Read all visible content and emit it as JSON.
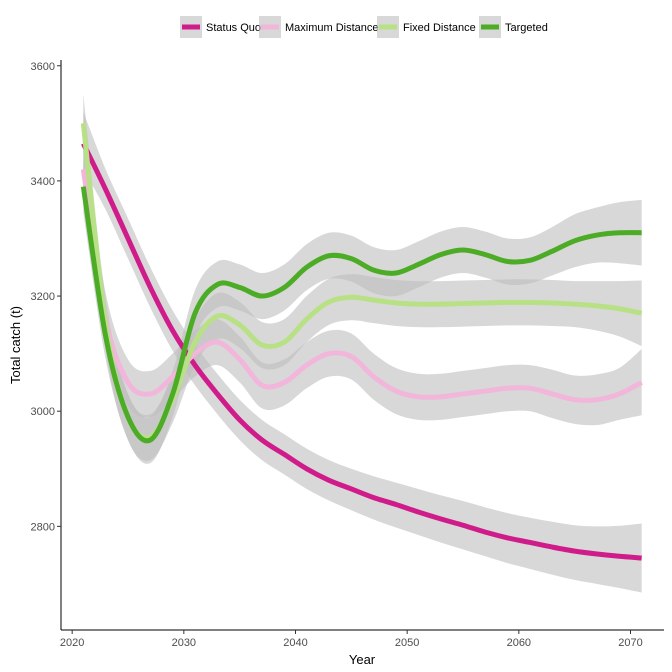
{
  "chart_data": {
    "type": "line",
    "title": "",
    "xlabel": "Year",
    "ylabel": "Total catch (t)",
    "xlim": [
      2019,
      2073
    ],
    "ylim": [
      2620,
      3610
    ],
    "x_ticks": [
      2020,
      2030,
      2040,
      2050,
      2060,
      2070
    ],
    "y_ticks": [
      2800,
      3000,
      3200,
      3400,
      3600
    ],
    "grid": false,
    "legend_position": "top",
    "band_color": "#bebebe",
    "series": [
      {
        "name": "Status Quo",
        "color": "#d01c8b",
        "x": [
          2021,
          2023,
          2025,
          2027,
          2029,
          2031,
          2033,
          2035,
          2037,
          2039,
          2041,
          2043,
          2045,
          2047,
          2049,
          2051,
          2053,
          2055,
          2057,
          2059,
          2061,
          2063,
          2065,
          2067,
          2069,
          2071
        ],
        "y": [
          3465,
          3385,
          3300,
          3215,
          3140,
          3080,
          3030,
          2985,
          2950,
          2925,
          2900,
          2880,
          2865,
          2850,
          2838,
          2825,
          2813,
          2802,
          2790,
          2780,
          2772,
          2764,
          2757,
          2752,
          2748,
          2745
        ],
        "ci_lower": [
          3420,
          3350,
          3265,
          3180,
          3105,
          3045,
          2995,
          2950,
          2915,
          2890,
          2865,
          2845,
          2828,
          2812,
          2798,
          2785,
          2772,
          2760,
          2748,
          2736,
          2726,
          2716,
          2707,
          2700,
          2693,
          2685
        ],
        "ci_upper": [
          3520,
          3420,
          3335,
          3250,
          3175,
          3115,
          3065,
          3020,
          2985,
          2960,
          2935,
          2915,
          2900,
          2887,
          2876,
          2865,
          2854,
          2844,
          2833,
          2823,
          2815,
          2808,
          2802,
          2800,
          2801,
          2805
        ]
      },
      {
        "name": "Maximum Distance",
        "color": "#f1b6da",
        "x": [
          2021,
          2023,
          2025,
          2027,
          2029,
          2031,
          2033,
          2035,
          2037,
          2039,
          2041,
          2043,
          2045,
          2047,
          2049,
          2051,
          2053,
          2055,
          2057,
          2059,
          2061,
          2063,
          2065,
          2067,
          2069,
          2071
        ],
        "y": [
          3420,
          3160,
          3050,
          3030,
          3060,
          3100,
          3120,
          3090,
          3045,
          3050,
          3080,
          3100,
          3095,
          3060,
          3035,
          3025,
          3025,
          3030,
          3035,
          3040,
          3040,
          3030,
          3020,
          3020,
          3030,
          3050
        ],
        "ci_lower": [
          3370,
          3115,
          3010,
          2990,
          3020,
          3060,
          3080,
          3050,
          3005,
          3010,
          3040,
          3060,
          3055,
          3020,
          2995,
          2985,
          2985,
          2990,
          2995,
          3000,
          3000,
          2988,
          2978,
          2976,
          2985,
          2993
        ],
        "ci_upper": [
          3470,
          3205,
          3090,
          3070,
          3100,
          3140,
          3160,
          3130,
          3085,
          3090,
          3120,
          3140,
          3135,
          3100,
          3075,
          3065,
          3065,
          3070,
          3075,
          3080,
          3080,
          3072,
          3062,
          3064,
          3075,
          3108
        ]
      },
      {
        "name": "Fixed Distance",
        "color": "#b8e186",
        "x": [
          2021,
          2023,
          2025,
          2027,
          2029,
          2031,
          2033,
          2035,
          2037,
          2039,
          2041,
          2043,
          2045,
          2047,
          2049,
          2051,
          2053,
          2055,
          2057,
          2059,
          2061,
          2063,
          2065,
          2067,
          2069,
          2071
        ],
        "y": [
          3500,
          3150,
          2990,
          2955,
          3020,
          3120,
          3165,
          3150,
          3115,
          3120,
          3160,
          3190,
          3198,
          3193,
          3188,
          3186,
          3186,
          3187,
          3188,
          3189,
          3189,
          3188,
          3186,
          3183,
          3178,
          3170
        ],
        "ci_lower": [
          3450,
          3105,
          2950,
          2915,
          2980,
          3080,
          3125,
          3110,
          3075,
          3080,
          3120,
          3150,
          3158,
          3153,
          3148,
          3146,
          3146,
          3147,
          3148,
          3149,
          3149,
          3148,
          3146,
          3140,
          3130,
          3113
        ],
        "ci_upper": [
          3550,
          3195,
          3030,
          2995,
          3060,
          3160,
          3205,
          3190,
          3155,
          3160,
          3200,
          3230,
          3238,
          3233,
          3228,
          3226,
          3226,
          3227,
          3228,
          3229,
          3229,
          3228,
          3226,
          3226,
          3226,
          3227
        ]
      },
      {
        "name": "Targeted",
        "color": "#4dac26",
        "x": [
          2021,
          2023,
          2025,
          2027,
          2029,
          2031,
          2033,
          2035,
          2037,
          2039,
          2041,
          2043,
          2045,
          2047,
          2049,
          2051,
          2053,
          2055,
          2057,
          2059,
          2061,
          2063,
          2065,
          2067,
          2069,
          2071
        ],
        "y": [
          3390,
          3130,
          2990,
          2950,
          3030,
          3170,
          3220,
          3215,
          3200,
          3215,
          3250,
          3270,
          3265,
          3245,
          3240,
          3255,
          3272,
          3280,
          3272,
          3260,
          3262,
          3278,
          3296,
          3306,
          3310,
          3310
        ],
        "ci_lower": [
          3345,
          3090,
          2950,
          2910,
          2990,
          3130,
          3180,
          3175,
          3160,
          3175,
          3210,
          3230,
          3225,
          3205,
          3200,
          3215,
          3232,
          3240,
          3232,
          3220,
          3222,
          3236,
          3250,
          3258,
          3257,
          3253
        ],
        "ci_upper": [
          3435,
          3170,
          3030,
          2990,
          3070,
          3210,
          3260,
          3255,
          3240,
          3255,
          3290,
          3310,
          3305,
          3285,
          3280,
          3295,
          3312,
          3320,
          3312,
          3300,
          3302,
          3320,
          3342,
          3354,
          3363,
          3367
        ]
      }
    ]
  }
}
